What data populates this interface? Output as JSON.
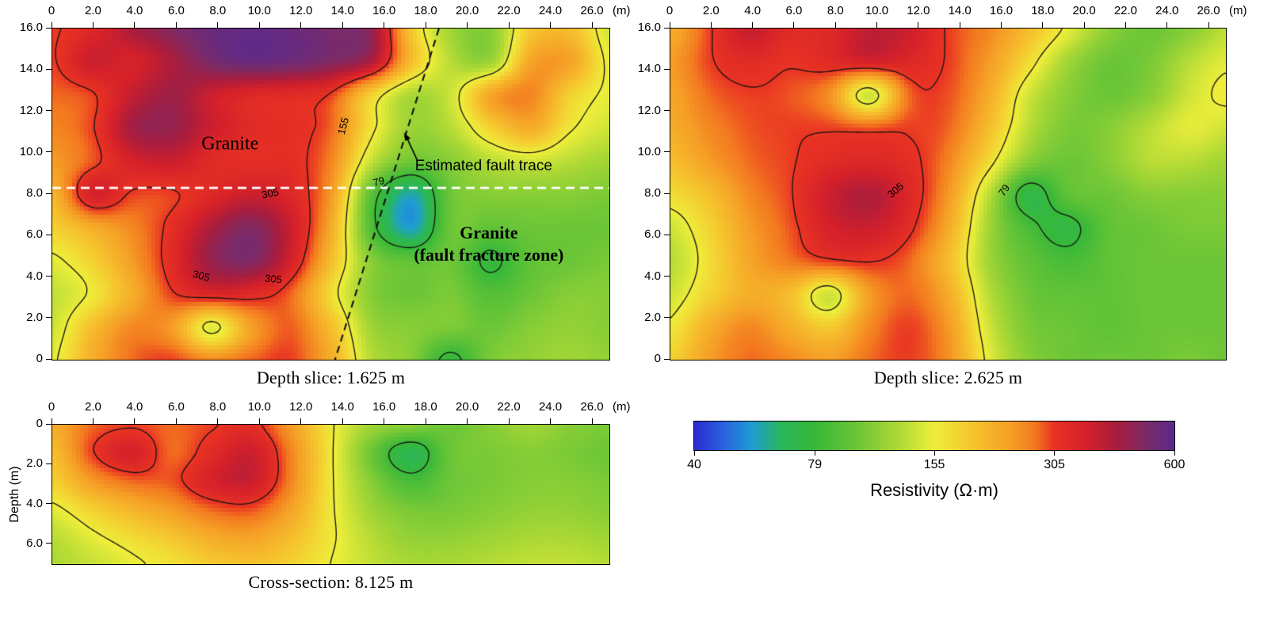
{
  "colorbar": {
    "label": "Resistivity (Ω·m)",
    "domain": [
      40,
      600
    ],
    "scale": "log",
    "ticks": [
      {
        "value": 40,
        "label": "40"
      },
      {
        "value": 79,
        "label": "79"
      },
      {
        "value": 155,
        "label": "155"
      },
      {
        "value": 305,
        "label": "305"
      },
      {
        "value": 600,
        "label": "600"
      }
    ]
  },
  "colormap": {
    "stops": [
      [
        0.0,
        "#2b2bd0"
      ],
      [
        0.06,
        "#2a62e0"
      ],
      [
        0.12,
        "#1e9ed2"
      ],
      [
        0.18,
        "#2ab75c"
      ],
      [
        0.25,
        "#38b838"
      ],
      [
        0.33,
        "#66c437"
      ],
      [
        0.42,
        "#aad835"
      ],
      [
        0.5,
        "#eeee3a"
      ],
      [
        0.58,
        "#f5c52e"
      ],
      [
        0.66,
        "#f59f26"
      ],
      [
        0.71,
        "#f3791f"
      ],
      [
        0.75,
        "#e93323"
      ],
      [
        0.82,
        "#d3202a"
      ],
      [
        0.88,
        "#a81d3e"
      ],
      [
        0.94,
        "#7c2a66"
      ],
      [
        1.0,
        "#5b2a8c"
      ]
    ]
  },
  "chart_data": [
    {
      "type": "heatmap",
      "title": "Depth slice: 1.625 m",
      "x_unit": "(m)",
      "xlim": [
        0,
        26.8
      ],
      "ylim": [
        0,
        16
      ],
      "value_unit": "Ω·m",
      "x_ticks": {
        "values": [
          0,
          2,
          4,
          6,
          8,
          10,
          12,
          14,
          16,
          18,
          20,
          22,
          24,
          26
        ],
        "labels": [
          "0",
          "2.0",
          "4.0",
          "6.0",
          "8.0",
          "10.0",
          "12.0",
          "14.0",
          "16.0",
          "18.0",
          "20.0",
          "22.0",
          "24.0",
          "26.0"
        ]
      },
      "y_ticks": {
        "values": [
          16,
          14,
          12,
          10,
          8,
          6,
          4,
          2,
          0
        ],
        "labels": [
          "16.0",
          "14.0",
          "12.0",
          "10.0",
          "8.0",
          "6.0",
          "4.0",
          "2.0",
          "0"
        ]
      },
      "y_axis_label": "",
      "contour_levels": [
        79,
        155,
        305
      ],
      "grid": {
        "y_top": 16,
        "y_bottom": 0,
        "values": [
          [
            300,
            340,
            430,
            500,
            560,
            580,
            560,
            520,
            470,
            190,
            120,
            110,
            190,
            200,
            140
          ],
          [
            300,
            380,
            360,
            430,
            520,
            560,
            540,
            500,
            420,
            200,
            130,
            120,
            230,
            230,
            150
          ],
          [
            280,
            300,
            390,
            450,
            380,
            340,
            330,
            300,
            180,
            125,
            140,
            230,
            260,
            180,
            150
          ],
          [
            260,
            300,
            440,
            460,
            380,
            330,
            320,
            280,
            165,
            118,
            130,
            180,
            220,
            160,
            140
          ],
          [
            240,
            290,
            360,
            380,
            330,
            320,
            320,
            260,
            135,
            100,
            110,
            130,
            140,
            130,
            120
          ],
          [
            210,
            360,
            300,
            300,
            340,
            380,
            340,
            240,
            92,
            58,
            100,
            110,
            110,
            110,
            105
          ],
          [
            180,
            220,
            260,
            320,
            430,
            500,
            380,
            220,
            88,
            56,
            100,
            95,
            100,
            100,
            100
          ],
          [
            150,
            180,
            240,
            330,
            460,
            500,
            360,
            200,
            110,
            95,
            100,
            76,
            95,
            100,
            105
          ],
          [
            135,
            160,
            220,
            300,
            340,
            330,
            280,
            170,
            110,
            100,
            105,
            90,
            100,
            110,
            110
          ],
          [
            140,
            200,
            260,
            240,
            148,
            235,
            285,
            200,
            120,
            110,
            105,
            100,
            110,
            115,
            110
          ],
          [
            150,
            220,
            280,
            300,
            260,
            285,
            300,
            220,
            130,
            110,
            75,
            105,
            115,
            120,
            115
          ]
        ]
      },
      "contour_labels": [
        {
          "text": "155",
          "x": 14.0,
          "y": 11.3,
          "rot": -75
        },
        {
          "text": "79",
          "x": 15.7,
          "y": 8.6,
          "rot": -15
        },
        {
          "text": "305",
          "x": 10.5,
          "y": 8.05,
          "rot": -10
        },
        {
          "text": "305",
          "x": 7.15,
          "y": 4.05,
          "rot": 15
        },
        {
          "text": "305",
          "x": 10.65,
          "y": 3.9,
          "rot": 5
        }
      ],
      "annotations": [
        {
          "lines": [
            "Granite"
          ],
          "x": 8.55,
          "y": 10.4,
          "style": "rock-label"
        },
        {
          "lines": [
            "Granite",
            "(fault fracture zone)"
          ],
          "x": 21.0,
          "y": 5.6,
          "style": "rock-label-bold"
        },
        {
          "lines": [
            "Estimated fault trace"
          ],
          "x": 20.75,
          "y": 9.35,
          "style": "fault-label"
        }
      ],
      "ref_line": {
        "y": 8.3
      },
      "fault_line": {
        "x1": 18.6,
        "y1": 16,
        "x2": 13.6,
        "y2": 0
      },
      "arrow": {
        "x1": 17.55,
        "y1": 9.65,
        "x2": 16.95,
        "y2": 10.95
      }
    },
    {
      "type": "heatmap",
      "title": "Depth slice: 2.625 m",
      "x_unit": "(m)",
      "xlim": [
        0,
        26.8
      ],
      "ylim": [
        0,
        16
      ],
      "value_unit": "Ω·m",
      "x_ticks": {
        "values": [
          0,
          2,
          4,
          6,
          8,
          10,
          12,
          14,
          16,
          18,
          20,
          22,
          24,
          26
        ],
        "labels": [
          "0",
          "2.0",
          "4.0",
          "6.0",
          "8.0",
          "10.0",
          "12.0",
          "14.0",
          "16.0",
          "18.0",
          "20.0",
          "22.0",
          "24.0",
          "26.0"
        ]
      },
      "y_ticks": {
        "values": [
          16,
          14,
          12,
          10,
          8,
          6,
          4,
          2,
          0
        ],
        "labels": [
          "16.0",
          "14.0",
          "12.0",
          "10.0",
          "8.0",
          "6.0",
          "4.0",
          "2.0",
          "0"
        ]
      },
      "y_axis_label": "",
      "contour_levels": [
        79,
        155,
        305
      ],
      "grid": {
        "y_top": 16,
        "y_bottom": 0,
        "values": [
          [
            220,
            300,
            390,
            330,
            340,
            400,
            380,
            300,
            260,
            200,
            150,
            112,
            100,
            110,
            135
          ],
          [
            240,
            300,
            330,
            310,
            330,
            360,
            340,
            300,
            240,
            170,
            120,
            100,
            105,
            130,
            150
          ],
          [
            230,
            280,
            300,
            290,
            250,
            140,
            280,
            290,
            220,
            140,
            110,
            100,
            110,
            140,
            160
          ],
          [
            220,
            260,
            290,
            300,
            300,
            290,
            300,
            280,
            200,
            130,
            105,
            110,
            130,
            150,
            140
          ],
          [
            200,
            240,
            280,
            300,
            330,
            340,
            320,
            260,
            170,
            110,
            100,
            110,
            130,
            130,
            120
          ],
          [
            170,
            200,
            260,
            300,
            380,
            420,
            340,
            240,
            130,
            72,
            95,
            100,
            110,
            110,
            110
          ],
          [
            140,
            180,
            240,
            290,
            360,
            380,
            320,
            220,
            120,
            85,
            74,
            95,
            100,
            105,
            105
          ],
          [
            130,
            170,
            230,
            270,
            300,
            310,
            280,
            200,
            120,
            95,
            85,
            95,
            100,
            100,
            100
          ],
          [
            140,
            180,
            220,
            200,
            140,
            240,
            280,
            220,
            130,
            100,
            95,
            95,
            100,
            100,
            100
          ],
          [
            160,
            220,
            260,
            220,
            190,
            260,
            300,
            240,
            140,
            105,
            100,
            95,
            100,
            100,
            100
          ],
          [
            180,
            240,
            280,
            260,
            240,
            280,
            300,
            250,
            150,
            110,
            100,
            100,
            100,
            105,
            100
          ]
        ]
      },
      "contour_labels": [
        {
          "text": "305",
          "x": 10.85,
          "y": 8.2,
          "rot": -40
        },
        {
          "text": "79",
          "x": 16.1,
          "y": 8.2,
          "rot": -55
        }
      ],
      "annotations": []
    },
    {
      "type": "heatmap",
      "title": "Cross-section: 8.125 m",
      "x_unit": "(m)",
      "xlim": [
        0,
        26.8
      ],
      "ylim": [
        0,
        7
      ],
      "value_unit": "Ω·m",
      "x_ticks": {
        "values": [
          0,
          2,
          4,
          6,
          8,
          10,
          12,
          14,
          16,
          18,
          20,
          22,
          24,
          26
        ],
        "labels": [
          "0",
          "2.0",
          "4.0",
          "6.0",
          "8.0",
          "10.0",
          "12.0",
          "14.0",
          "16.0",
          "18.0",
          "20.0",
          "22.0",
          "24.0",
          "26.0"
        ]
      },
      "y_ticks": {
        "values": [
          0,
          2,
          4,
          6
        ],
        "labels": [
          "0",
          "2.0",
          "4.0",
          "6.0"
        ]
      },
      "y_axis_label": "Depth (m)",
      "contour_levels": [
        79,
        155,
        305
      ],
      "grid": {
        "y_top": 0,
        "y_bottom": 7,
        "values": [
          [
            220,
            280,
            300,
            280,
            300,
            320,
            240,
            160,
            120,
            110,
            100,
            110,
            120,
            110,
            105
          ],
          [
            200,
            300,
            360,
            280,
            330,
            380,
            260,
            160,
            100,
            68,
            100,
            105,
            110,
            105,
            100
          ],
          [
            180,
            240,
            280,
            290,
            360,
            380,
            260,
            160,
            110,
            85,
            100,
            105,
            110,
            110,
            105
          ],
          [
            150,
            180,
            210,
            240,
            280,
            290,
            230,
            160,
            120,
            105,
            105,
            110,
            115,
            115,
            110
          ],
          [
            130,
            150,
            170,
            190,
            220,
            230,
            200,
            160,
            130,
            115,
            115,
            120,
            125,
            125,
            120
          ],
          [
            125,
            135,
            150,
            165,
            185,
            195,
            180,
            155,
            135,
            125,
            125,
            130,
            135,
            135,
            130
          ]
        ]
      },
      "contour_labels": [],
      "annotations": []
    }
  ]
}
